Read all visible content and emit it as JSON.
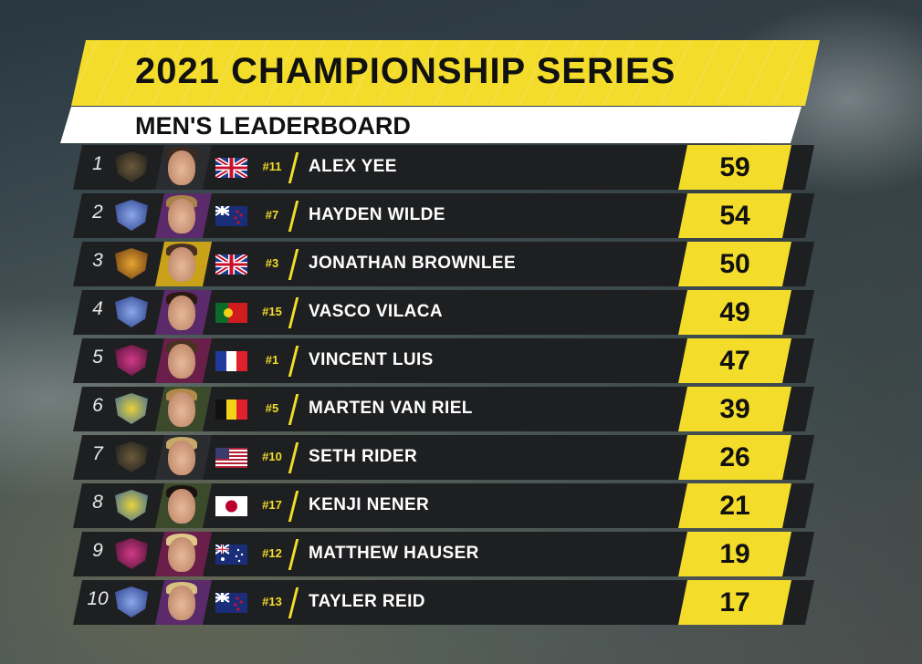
{
  "header": {
    "title": "2021 CHAMPIONSHIP SERIES",
    "subtitle": "MEN'S LEADERBOARD"
  },
  "colors": {
    "accent_yellow": "#f3dc2a",
    "row_background": "#1e1f21",
    "subtitle_background": "#ffffff"
  },
  "rows": [
    {
      "rank": "1",
      "team_icon": "eagles-logo-icon",
      "flag_icon": "uk-flag-icon",
      "number": "#11",
      "name": "ALEX YEE",
      "points": "59"
    },
    {
      "rank": "2",
      "team_icon": "sharks-logo-icon",
      "flag_icon": "new-zealand-flag-icon",
      "number": "#7",
      "name": "HAYDEN WILDE",
      "points": "54"
    },
    {
      "rank": "3",
      "team_icon": "cheetahs-logo-icon",
      "flag_icon": "uk-flag-icon",
      "number": "#3",
      "name": "JONATHAN BROWNLEE",
      "points": "50"
    },
    {
      "rank": "4",
      "team_icon": "sharks-logo-icon",
      "flag_icon": "portugal-flag-icon",
      "number": "#15",
      "name": "VASCO VILACA",
      "points": "49"
    },
    {
      "rank": "5",
      "team_icon": "scorpions-logo-icon",
      "flag_icon": "france-flag-icon",
      "number": "#1",
      "name": "VINCENT LUIS",
      "points": "47"
    },
    {
      "rank": "6",
      "team_icon": "rhinos-logo-icon",
      "flag_icon": "belgium-flag-icon",
      "number": "#5",
      "name": "MARTEN VAN RIEL",
      "points": "39"
    },
    {
      "rank": "7",
      "team_icon": "eagles-logo-icon",
      "flag_icon": "usa-flag-icon",
      "number": "#10",
      "name": "SETH RIDER",
      "points": "26"
    },
    {
      "rank": "8",
      "team_icon": "rhinos-logo-icon",
      "flag_icon": "japan-flag-icon",
      "number": "#17",
      "name": "KENJI NENER",
      "points": "21"
    },
    {
      "rank": "9",
      "team_icon": "scorpions-logo-icon",
      "flag_icon": "australia-flag-icon",
      "number": "#12",
      "name": "MATTHEW HAUSER",
      "points": "19"
    },
    {
      "rank": "10",
      "team_icon": "sharks-logo-icon",
      "flag_icon": "new-zealand-flag-icon",
      "number": "#13",
      "name": "TAYLER REID",
      "points": "17"
    }
  ]
}
